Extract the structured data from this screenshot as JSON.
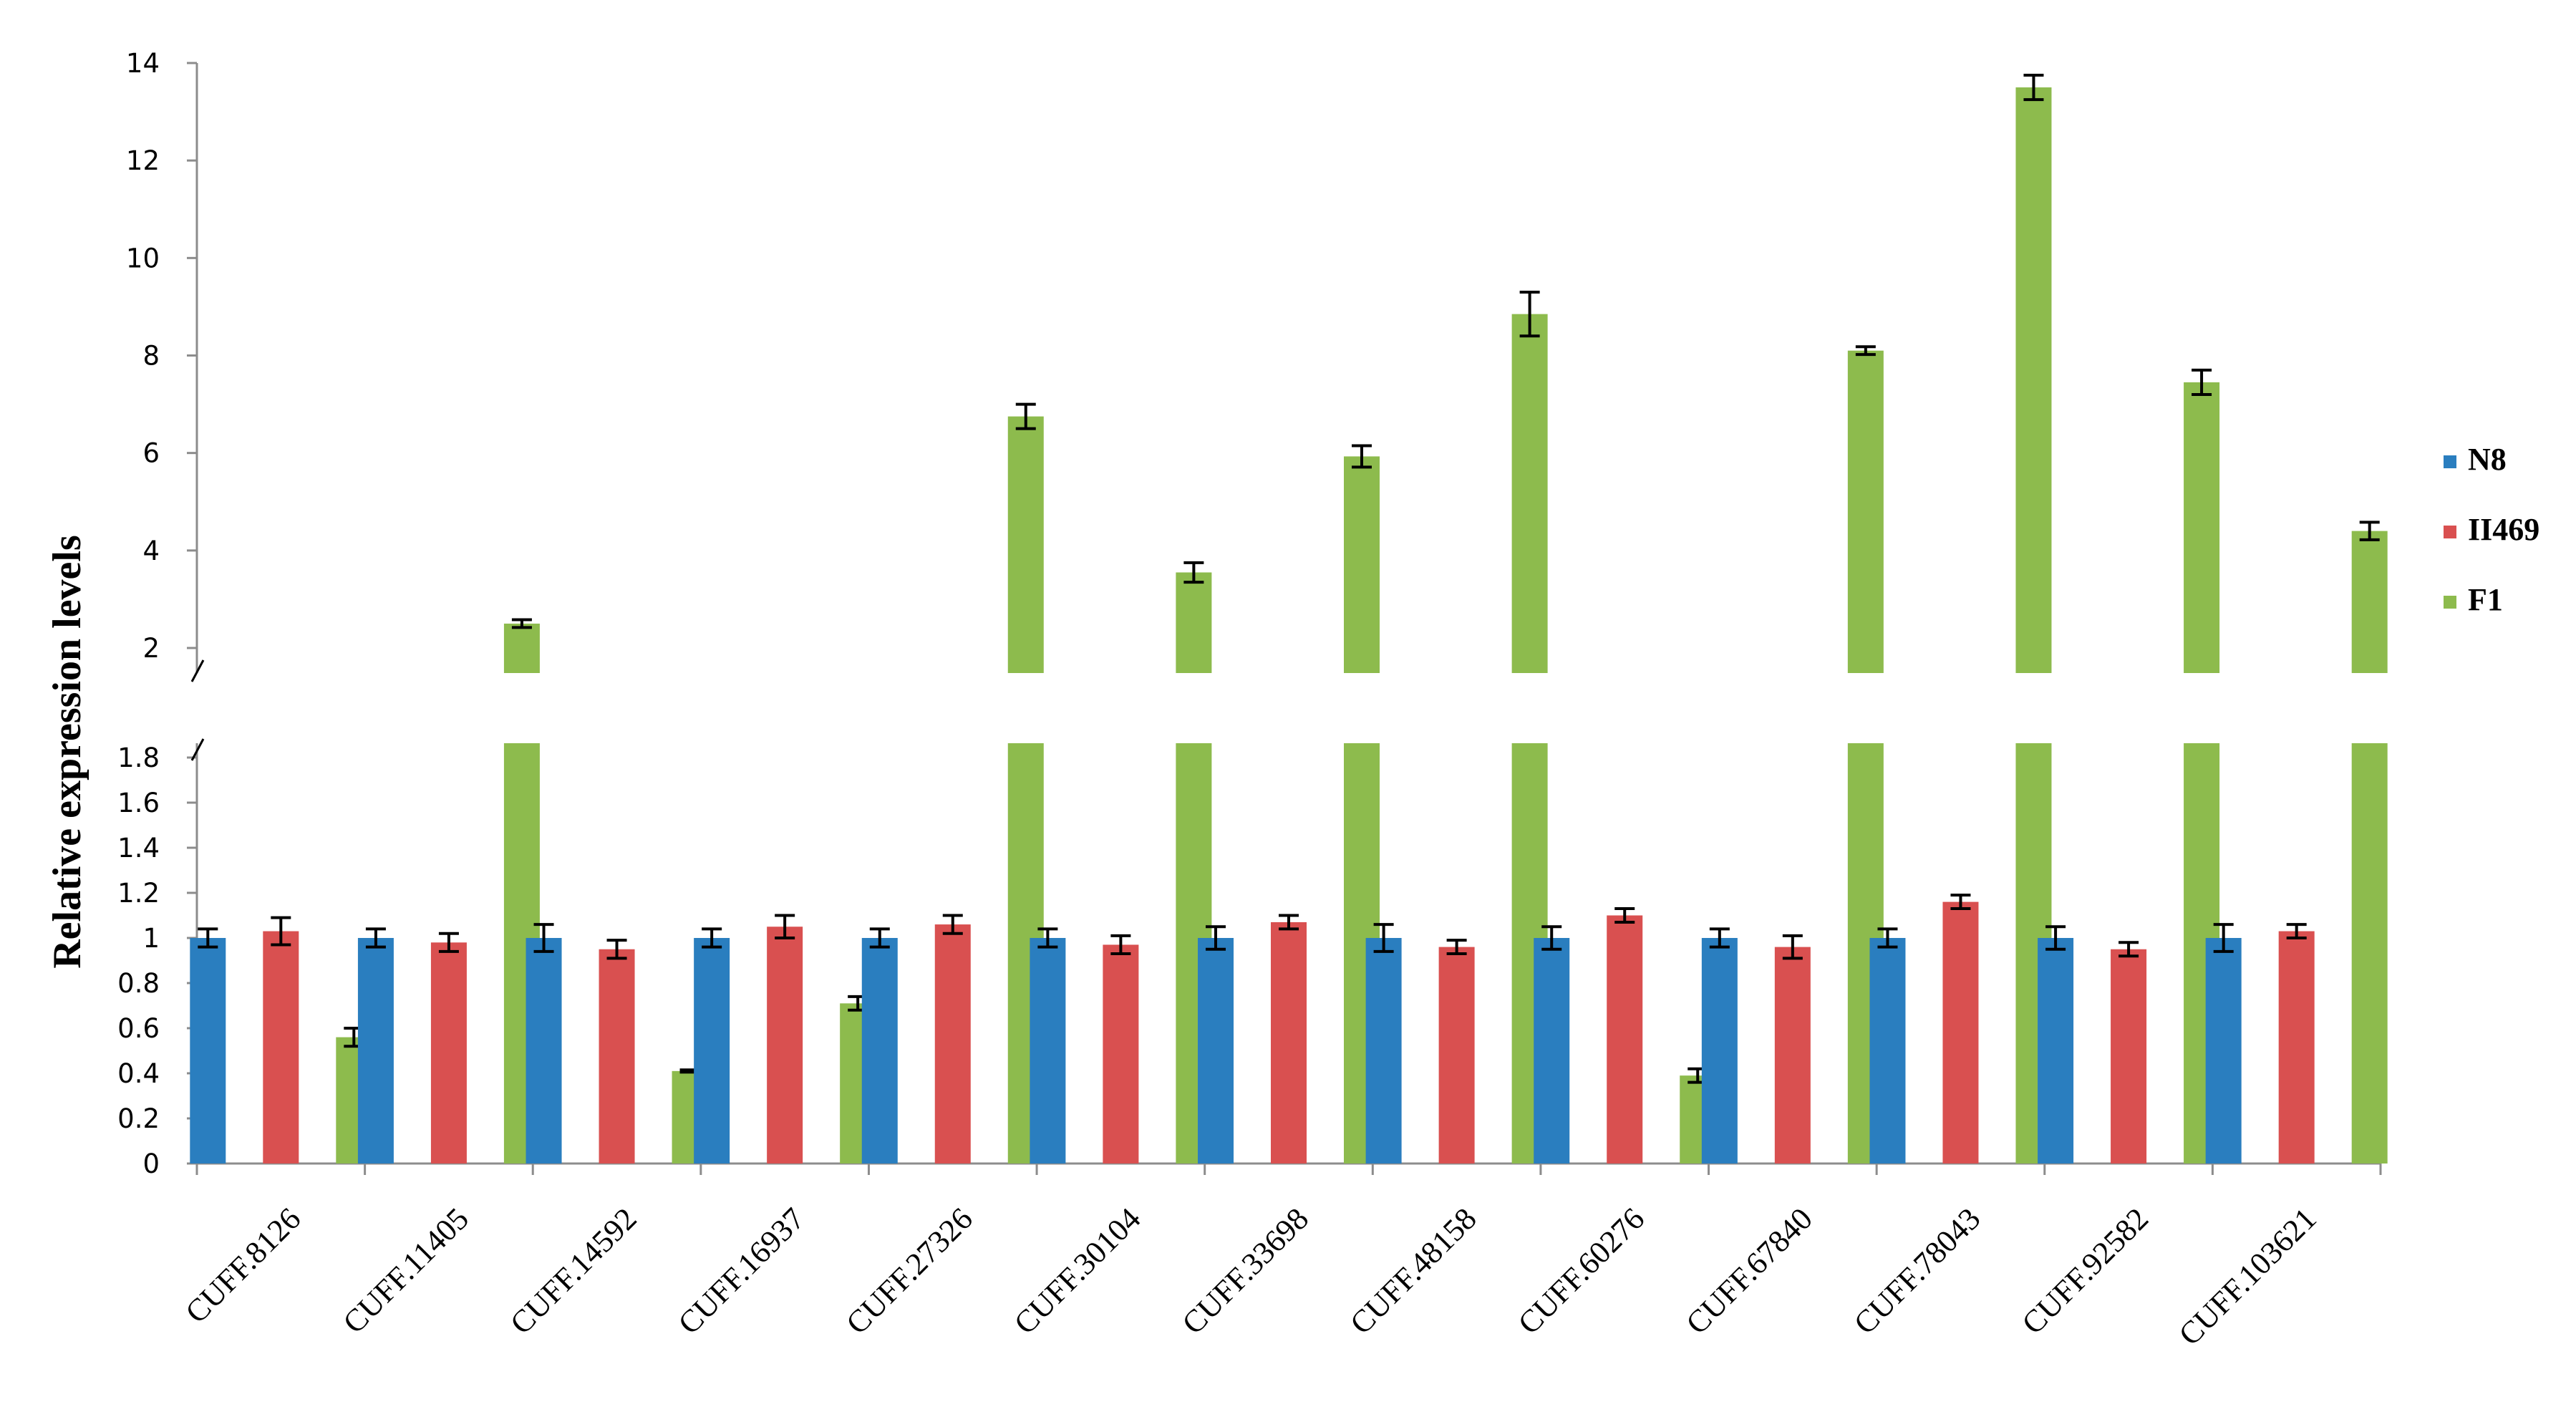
{
  "chart_data": {
    "type": "bar",
    "ylabel": "Relative expression levels",
    "xlabel": "",
    "title": "",
    "broken_y_axis": true,
    "lower_segment": {
      "ylim": [
        0,
        1.8
      ],
      "ticks": [
        "0",
        "0.2",
        "0.4",
        "0.6",
        "0.8",
        "1",
        "1.2",
        "1.4",
        "1.6",
        "1.8"
      ]
    },
    "upper_segment": {
      "ylim": [
        2,
        14
      ],
      "ticks": [
        "2",
        "4",
        "6",
        "8",
        "10",
        "12",
        "14"
      ]
    },
    "categories": [
      "CUFF.8126",
      "CUFF.11405",
      "CUFF.14592",
      "CUFF.16937",
      "CUFF.27326",
      "CUFF.30104",
      "CUFF.33698",
      "CUFF.48158",
      "CUFF.60276",
      "CUFF.67840",
      "CUFF.78043",
      "CUFF.92582",
      "CUFF.103621"
    ],
    "series": [
      {
        "name": "N8",
        "color": "#2a7ebf",
        "values": [
          1.0,
          1.0,
          1.0,
          1.0,
          1.0,
          1.0,
          1.0,
          1.0,
          1.0,
          1.0,
          1.0,
          1.0,
          1.0
        ],
        "errors": [
          0.04,
          0.04,
          0.06,
          0.04,
          0.04,
          0.04,
          0.05,
          0.06,
          0.05,
          0.04,
          0.04,
          0.05,
          0.06
        ]
      },
      {
        "name": "II469",
        "color": "#d95050",
        "values": [
          1.03,
          0.98,
          0.95,
          1.05,
          1.06,
          0.97,
          1.07,
          0.96,
          1.1,
          0.96,
          1.16,
          0.95,
          1.03
        ],
        "errors": [
          0.06,
          0.04,
          0.04,
          0.05,
          0.04,
          0.04,
          0.03,
          0.03,
          0.03,
          0.05,
          0.03,
          0.03,
          0.03
        ]
      },
      {
        "name": "F1",
        "color": "#8dbb4d",
        "values": [
          0.56,
          2.5,
          0.41,
          0.71,
          6.75,
          3.55,
          5.93,
          8.85,
          0.39,
          8.1,
          13.5,
          7.45,
          4.4
        ],
        "errors": [
          0.04,
          0.08,
          0.005,
          0.03,
          0.25,
          0.2,
          0.22,
          0.45,
          0.03,
          0.08,
          0.25,
          0.25,
          0.18
        ]
      }
    ],
    "legend_position": "right",
    "grid": false
  }
}
